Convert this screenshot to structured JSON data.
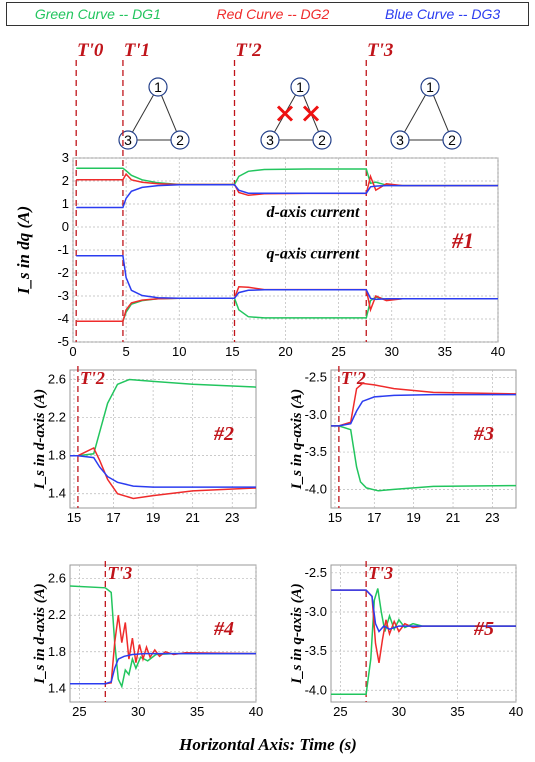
{
  "colors": {
    "dg1": "#22c55e",
    "dg2": "#ef2b2b",
    "dg3": "#2b3cf0",
    "marker": "#c0141a",
    "grid": "#b8b8b8"
  },
  "legend": [
    {
      "label": "Green Curve -- DG1",
      "color": "#22c55e"
    },
    {
      "label": "Red Curve -- DG2",
      "color": "#ef2b2b"
    },
    {
      "label": "Blue Curve -- DG3",
      "color": "#2b3cf0"
    }
  ],
  "x_axis_title": "Horizontal Axis: Time (s)",
  "topology": {
    "nodes": [
      "1",
      "2",
      "3"
    ],
    "diagrams": [
      {
        "faults": []
      },
      {
        "faults": [
          "1-3",
          "1-2"
        ]
      },
      {
        "faults": []
      }
    ]
  },
  "chart_data": [
    {
      "type": "line",
      "id": "#1",
      "ylabel": "I_s in dq (A)",
      "xlim": [
        0,
        40
      ],
      "ylim": [
        -5,
        3
      ],
      "xticks": [
        0,
        5,
        10,
        15,
        20,
        25,
        30,
        35,
        40
      ],
      "yticks": [
        -5,
        -4,
        -3,
        -2,
        -1,
        0,
        1,
        2,
        3
      ],
      "events": [
        {
          "label": "T'0",
          "x": 0.3
        },
        {
          "label": "T'1",
          "x": 4.7
        },
        {
          "label": "T'2",
          "x": 15.2
        },
        {
          "label": "T'3",
          "x": 27.6
        }
      ],
      "annotations": [
        "d-axis current",
        "q-axis current"
      ],
      "series": [
        {
          "key": "dg1",
          "x": [
            0.3,
            4.7,
            5.0,
            5.5,
            6.5,
            8,
            10,
            15.2,
            15.6,
            16.5,
            18,
            22,
            27.6,
            28.0,
            28.5,
            29.5,
            31,
            40
          ],
          "y": [
            2.55,
            2.55,
            2.45,
            2.25,
            2.05,
            1.92,
            1.85,
            1.85,
            2.2,
            2.42,
            2.5,
            2.52,
            2.52,
            1.9,
            1.95,
            1.82,
            1.8,
            1.8
          ]
        },
        {
          "key": "dg2",
          "x": [
            0.3,
            4.7,
            5.0,
            5.5,
            6.5,
            8,
            10,
            15.2,
            15.6,
            16.5,
            18,
            22,
            27.6,
            28.0,
            28.5,
            29.5,
            31,
            40
          ],
          "y": [
            2.05,
            2.05,
            2.3,
            2.05,
            1.95,
            1.88,
            1.85,
            1.85,
            1.5,
            1.38,
            1.45,
            1.46,
            1.46,
            2.2,
            1.6,
            1.88,
            1.8,
            1.8
          ]
        },
        {
          "key": "dg3",
          "x": [
            0.3,
            4.7,
            5.0,
            5.5,
            6.5,
            8,
            10,
            15.2,
            15.6,
            16.5,
            18,
            22,
            27.6,
            28.0,
            28.5,
            29.5,
            31,
            40
          ],
          "y": [
            0.85,
            0.85,
            1.25,
            1.55,
            1.72,
            1.8,
            1.84,
            1.84,
            1.6,
            1.47,
            1.47,
            1.47,
            1.47,
            1.75,
            1.78,
            1.8,
            1.8,
            1.8
          ]
        },
        {
          "key": "dg1",
          "x": [
            0.3,
            4.7,
            5.0,
            5.5,
            6.5,
            8,
            10,
            15.2,
            15.6,
            16.5,
            18,
            22,
            27.6,
            28.0,
            28.5,
            29.5,
            31,
            40
          ],
          "y": [
            -4.1,
            -4.1,
            -3.7,
            -3.35,
            -3.2,
            -3.12,
            -3.1,
            -3.1,
            -3.6,
            -3.9,
            -3.95,
            -3.95,
            -3.95,
            -3.2,
            -3.05,
            -3.15,
            -3.12,
            -3.12
          ]
        },
        {
          "key": "dg2",
          "x": [
            0.3,
            4.7,
            5.0,
            5.5,
            6.5,
            8,
            10,
            15.2,
            15.6,
            16.5,
            18,
            22,
            27.6,
            28.0,
            28.5,
            29.5,
            31,
            40
          ],
          "y": [
            -4.1,
            -4.1,
            -3.6,
            -3.3,
            -3.18,
            -3.12,
            -3.1,
            -3.1,
            -2.6,
            -2.62,
            -2.72,
            -2.72,
            -2.72,
            -3.6,
            -3.0,
            -3.2,
            -3.12,
            -3.12
          ]
        },
        {
          "key": "dg3",
          "x": [
            0.3,
            4.7,
            5.0,
            5.5,
            6.5,
            8,
            10,
            15.2,
            15.6,
            16.5,
            18,
            22,
            27.6,
            28.0,
            28.5,
            29.5,
            31,
            40
          ],
          "y": [
            -1.25,
            -1.25,
            -2.2,
            -2.75,
            -2.98,
            -3.08,
            -3.1,
            -3.1,
            -2.85,
            -2.75,
            -2.73,
            -2.73,
            -2.73,
            -3.1,
            -3.15,
            -3.12,
            -3.12,
            -3.12
          ]
        }
      ]
    },
    {
      "type": "line",
      "id": "#2",
      "ylabel": "I_s in d-axis (A)",
      "xlim": [
        14.8,
        24.2
      ],
      "ylim": [
        1.25,
        2.7
      ],
      "xticks": [
        15,
        17,
        19,
        21,
        23
      ],
      "yticks": [
        1.4,
        1.8,
        2.2,
        2.6
      ],
      "events": [
        {
          "label": "T'2",
          "x": 15.2
        }
      ],
      "series": [
        {
          "key": "dg1",
          "x": [
            14.8,
            15.2,
            16.0,
            16.3,
            16.7,
            17.2,
            17.8,
            19,
            21,
            24.2
          ],
          "y": [
            1.8,
            1.8,
            1.82,
            2.05,
            2.35,
            2.55,
            2.6,
            2.58,
            2.55,
            2.52
          ]
        },
        {
          "key": "dg2",
          "x": [
            14.8,
            15.2,
            16.0,
            16.3,
            16.7,
            17.2,
            18,
            19,
            21,
            24.2
          ],
          "y": [
            1.8,
            1.8,
            1.88,
            1.75,
            1.55,
            1.4,
            1.35,
            1.38,
            1.43,
            1.46
          ]
        },
        {
          "key": "dg3",
          "x": [
            14.8,
            15.2,
            16.0,
            16.3,
            16.7,
            17.2,
            18,
            19,
            21,
            24.2
          ],
          "y": [
            1.8,
            1.8,
            1.78,
            1.68,
            1.58,
            1.52,
            1.48,
            1.47,
            1.47,
            1.47
          ]
        }
      ]
    },
    {
      "type": "line",
      "id": "#3",
      "ylabel": "I_s in q-axis (A)",
      "xlim": [
        14.8,
        24.2
      ],
      "ylim": [
        -4.25,
        -2.4
      ],
      "xticks": [
        15,
        17,
        19,
        21,
        23
      ],
      "yticks": [
        -2.5,
        -3.0,
        -3.5,
        -4.0
      ],
      "events": [
        {
          "label": "T'2",
          "x": 15.2
        }
      ],
      "series": [
        {
          "key": "dg1",
          "x": [
            14.8,
            15.2,
            15.8,
            16.1,
            16.3,
            16.6,
            17.2,
            18,
            20,
            24.2
          ],
          "y": [
            -3.15,
            -3.15,
            -3.2,
            -3.7,
            -3.9,
            -3.98,
            -4.02,
            -4.0,
            -3.96,
            -3.95
          ]
        },
        {
          "key": "dg2",
          "x": [
            14.8,
            15.2,
            15.8,
            16.1,
            16.4,
            17,
            18,
            20,
            24.2
          ],
          "y": [
            -3.15,
            -3.15,
            -3.1,
            -2.65,
            -2.58,
            -2.6,
            -2.65,
            -2.7,
            -2.72
          ]
        },
        {
          "key": "dg3",
          "x": [
            14.8,
            15.2,
            15.8,
            16.1,
            16.4,
            17,
            18,
            20,
            24.2
          ],
          "y": [
            -3.15,
            -3.15,
            -3.12,
            -2.95,
            -2.82,
            -2.76,
            -2.74,
            -2.73,
            -2.73
          ]
        }
      ]
    },
    {
      "type": "line",
      "id": "#4",
      "ylabel": "I_s in d-axis (A)",
      "xlim": [
        24.2,
        40
      ],
      "ylim": [
        1.25,
        2.75
      ],
      "xticks": [
        25,
        30,
        35,
        40
      ],
      "yticks": [
        1.4,
        1.8,
        2.2,
        2.6
      ],
      "events": [
        {
          "label": "T'3",
          "x": 27.2
        }
      ],
      "series": [
        {
          "key": "dg1",
          "x": [
            24.2,
            27.2,
            27.7,
            28.0,
            28.3,
            28.6,
            28.9,
            29.2,
            29.5,
            29.8,
            30.2,
            30.8,
            31.5,
            33,
            40
          ],
          "y": [
            2.52,
            2.5,
            2.45,
            1.9,
            1.5,
            1.42,
            1.6,
            1.55,
            1.72,
            1.62,
            1.74,
            1.7,
            1.77,
            1.78,
            1.78
          ]
        },
        {
          "key": "dg2",
          "x": [
            24.2,
            27.2,
            27.7,
            28.0,
            28.3,
            28.6,
            28.9,
            29.2,
            29.5,
            29.8,
            30.1,
            30.4,
            30.7,
            31.0,
            31.4,
            31.8,
            32.3,
            33,
            34,
            40
          ],
          "y": [
            1.45,
            1.45,
            1.46,
            1.9,
            2.2,
            1.9,
            2.12,
            1.72,
            1.95,
            1.68,
            1.88,
            1.72,
            1.85,
            1.74,
            1.82,
            1.75,
            1.8,
            1.77,
            1.79,
            1.78
          ]
        },
        {
          "key": "dg3",
          "x": [
            24.2,
            27.2,
            27.7,
            28.0,
            28.3,
            28.8,
            29.5,
            30.5,
            32,
            40
          ],
          "y": [
            1.45,
            1.45,
            1.47,
            1.62,
            1.72,
            1.75,
            1.77,
            1.78,
            1.78,
            1.78
          ]
        }
      ]
    },
    {
      "type": "line",
      "id": "#5",
      "ylabel": "I_s in q-axis (A)",
      "xlim": [
        24.2,
        40
      ],
      "ylim": [
        -4.15,
        -2.4
      ],
      "xticks": [
        25,
        30,
        35,
        40
      ],
      "yticks": [
        -2.5,
        -3.0,
        -3.5,
        -4.0
      ],
      "events": [
        {
          "label": "T'3",
          "x": 27.2
        }
      ],
      "series": [
        {
          "key": "dg1",
          "x": [
            24.2,
            27.2,
            27.6,
            27.9,
            28.2,
            28.5,
            28.8,
            29.2,
            29.6,
            30.0,
            30.5,
            31.2,
            32,
            40
          ],
          "y": [
            -4.05,
            -4.05,
            -3.6,
            -2.85,
            -2.7,
            -3.0,
            -3.25,
            -3.05,
            -3.22,
            -3.1,
            -3.2,
            -3.15,
            -3.18,
            -3.18
          ]
        },
        {
          "key": "dg2",
          "x": [
            24.2,
            27.2,
            27.7,
            28.0,
            28.3,
            28.6,
            28.9,
            29.2,
            29.6,
            30.0,
            30.5,
            31.2,
            32,
            40
          ],
          "y": [
            -2.72,
            -2.72,
            -2.8,
            -3.4,
            -3.65,
            -3.35,
            -3.1,
            -3.28,
            -3.12,
            -3.25,
            -3.15,
            -3.2,
            -3.18,
            -3.18
          ]
        },
        {
          "key": "dg3",
          "x": [
            24.2,
            27.2,
            27.7,
            28.0,
            28.3,
            28.7,
            29.2,
            30,
            31,
            40
          ],
          "y": [
            -2.72,
            -2.72,
            -2.8,
            -3.15,
            -3.25,
            -3.18,
            -3.22,
            -3.18,
            -3.18,
            -3.18
          ]
        }
      ]
    }
  ]
}
